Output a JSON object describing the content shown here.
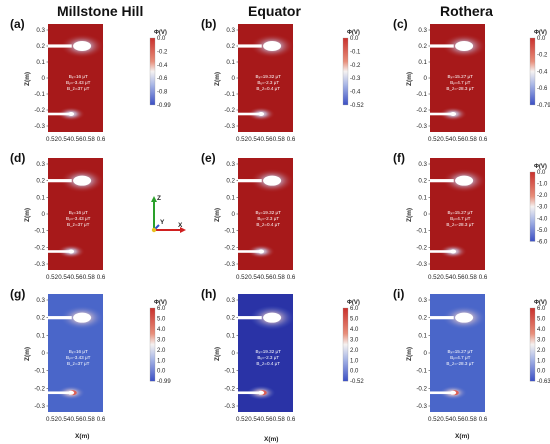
{
  "columns": [
    "Millstone Hill",
    "Equator",
    "Rothera"
  ],
  "panels": [
    {
      "label": "(a)",
      "row": 0,
      "col": 0,
      "field": "red",
      "annotation": [
        "Bₓ=16 μT",
        "Bᵧ=-3.43 μT",
        "B_z=37 μT"
      ],
      "colorbar": {
        "title": "Φ(V)",
        "ticks": [
          "0.0",
          "-0.2",
          "-0.4",
          "-0.6",
          "-0.8",
          "-0.99"
        ],
        "top_color": "#c43a2c",
        "bottom_color": "#3b52c4"
      }
    },
    {
      "label": "(b)",
      "row": 0,
      "col": 1,
      "field": "red",
      "annotation": [
        "Bₓ=19.32 μT",
        "Bᵧ=-2.3 μT",
        "B_z=0.4 μT"
      ],
      "colorbar": {
        "title": "Φ(V)",
        "ticks": [
          "0.0",
          "-0.1",
          "-0.2",
          "-0.3",
          "-0.4",
          "-0.52"
        ],
        "top_color": "#c43a2c",
        "bottom_color": "#3b52c4"
      }
    },
    {
      "label": "(c)",
      "row": 0,
      "col": 2,
      "field": "red",
      "annotation": [
        "Bₓ=15.27 μT",
        "Bᵧ=4.7 μT",
        "B_z=-28.3 μT"
      ],
      "colorbar": {
        "title": "Φ(V)",
        "ticks": [
          "0.0",
          "-0.2",
          "-0.4",
          "-0.6",
          "-0.79"
        ],
        "top_color": "#c43a2c",
        "bottom_color": "#3b52c4"
      }
    },
    {
      "label": "(d)",
      "row": 1,
      "col": 0,
      "field": "red",
      "annotation": [
        "Bₓ=16 μT",
        "Bᵧ=-3.43 μT",
        "B_z=37 μT"
      ],
      "colorbar": null
    },
    {
      "label": "(e)",
      "row": 1,
      "col": 1,
      "field": "red",
      "annotation": [
        "Bₓ=19.32 μT",
        "Bᵧ=-2.3 μT",
        "B_z=0.4 μT"
      ],
      "colorbar": null
    },
    {
      "label": "(f)",
      "row": 1,
      "col": 2,
      "field": "red",
      "annotation": [
        "Bₓ=15.27 μT",
        "Bᵧ=4.7 μT",
        "B_z=-28.3 μT"
      ],
      "colorbar": {
        "title": "Φ(V)",
        "ticks": [
          "0.0",
          "-1.0",
          "-2.0",
          "-3.0",
          "-4.0",
          "-5.0",
          "-6.0"
        ],
        "top_color": "#c43a2c",
        "bottom_color": "#3b52c4"
      }
    },
    {
      "label": "(g)",
      "row": 2,
      "col": 0,
      "field": "blue",
      "annotation": [
        "Bₓ=16 μT",
        "Bᵧ=-3.43 μT",
        "B_z=37 μT"
      ],
      "colorbar": {
        "title": "Φ(V)",
        "ticks": [
          "6.0",
          "5.0",
          "4.0",
          "3.0",
          "2.0",
          "1.0",
          "0.0",
          "-0.99"
        ],
        "top_color": "#c43a2c",
        "bottom_color": "#3b52c4"
      }
    },
    {
      "label": "(h)",
      "row": 2,
      "col": 1,
      "field": "darkblue",
      "annotation": [
        "Bₓ=19.32 μT",
        "Bᵧ=-2.3 μT",
        "B_z=0.4 μT"
      ],
      "colorbar": {
        "title": "Φ(V)",
        "ticks": [
          "6.0",
          "5.0",
          "4.0",
          "3.0",
          "2.0",
          "1.0",
          "0.0",
          "-0.52"
        ],
        "top_color": "#c43a2c",
        "bottom_color": "#3b52c4"
      }
    },
    {
      "label": "(i)",
      "row": 2,
      "col": 2,
      "field": "blue",
      "annotation": [
        "Bₓ=15.27 μT",
        "Bᵧ=4.7 μT",
        "B_z=-28.3 μT"
      ],
      "colorbar": {
        "title": "Φ(V)",
        "ticks": [
          "6.0",
          "5.0",
          "4.0",
          "3.0",
          "2.0",
          "1.0",
          "0.0",
          "-0.63"
        ],
        "top_color": "#c43a2c",
        "bottom_color": "#3b52c4"
      }
    }
  ],
  "y_ticks": [
    "0.3",
    "0.2",
    "0.1",
    "0",
    "-0.1",
    "-0.2",
    "-0.3"
  ],
  "x_ticks": [
    "0.52",
    "0.54",
    "0.56",
    "0.58",
    "0.6"
  ],
  "y_label": "Z(m)",
  "x_label": "X(m)",
  "axes_triad": {
    "labels": [
      "Z",
      "Y",
      "X"
    ],
    "colors": [
      "#2aa02a",
      "#3050d0",
      "#d02020"
    ]
  },
  "colors": {
    "field_red": "#a7191a",
    "field_blue": "#4a66c9",
    "field_darkblue": "#2a33a6",
    "probe": "#ffffff"
  }
}
